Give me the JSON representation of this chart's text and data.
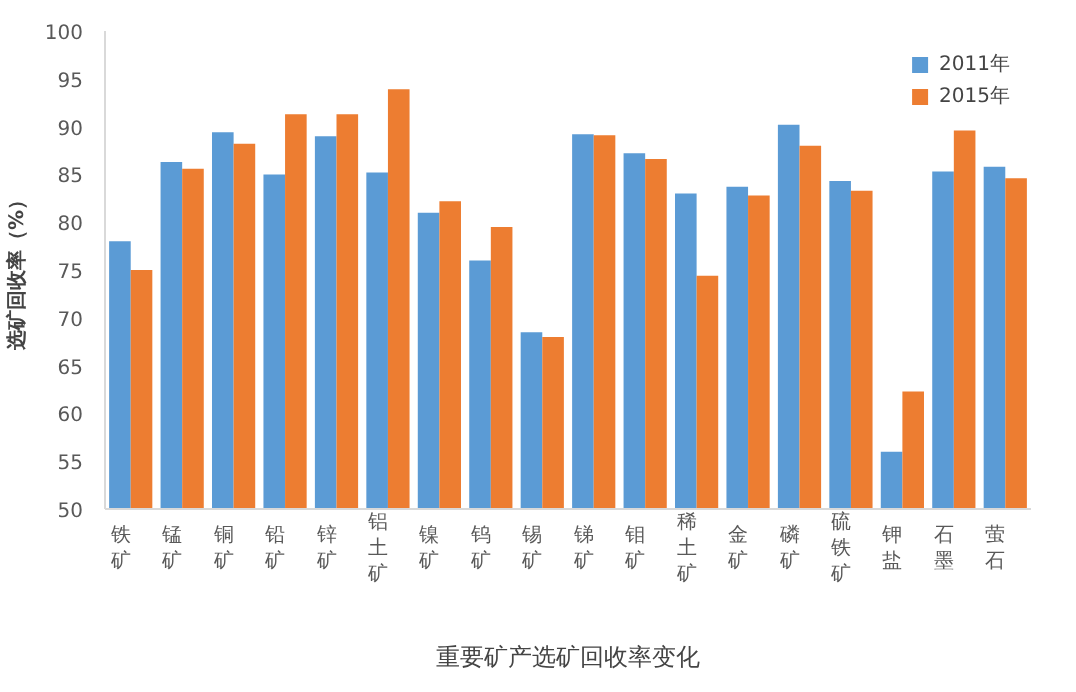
{
  "chart_data": {
    "type": "bar",
    "title": "重要矿产选矿回收率变化",
    "ylabel": "选矿回收率（%）",
    "categories": [
      "铁矿",
      "锰矿",
      "铜矿",
      "铅矿",
      "锌矿",
      "铝土矿",
      "镍矿",
      "钨矿",
      "锡矿",
      "锑矿",
      "钼矿",
      "稀土矿",
      "金矿",
      "磷矿",
      "硫铁矿",
      "钾盐",
      "石墨",
      "萤石"
    ],
    "series": [
      {
        "name": "2011年",
        "color": "#5b9bd5",
        "values": [
          78,
          86.3,
          89.4,
          85,
          89,
          85.2,
          81,
          76,
          68.5,
          89.2,
          87.2,
          83,
          83.7,
          90.2,
          84.3,
          56,
          85.3,
          85.8
        ]
      },
      {
        "name": "2015年",
        "color": "#ed7d31",
        "values": [
          75,
          85.6,
          88.2,
          91.3,
          91.3,
          93.9,
          82.2,
          79.5,
          68,
          89.1,
          86.6,
          74.4,
          82.8,
          88,
          83.3,
          62.3,
          89.6,
          84.6
        ]
      }
    ],
    "ylim": [
      50,
      100
    ],
    "yticks": [
      50,
      55,
      60,
      65,
      70,
      75,
      80,
      85,
      90,
      95,
      100
    ],
    "grid": false,
    "legend": "top right"
  }
}
